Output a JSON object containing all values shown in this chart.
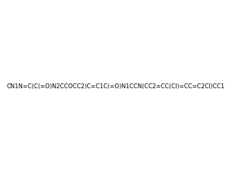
{
  "smiles": "CN1N=C(C(=O)N2CCOCC2)C=C1C(=O)N1CCN(CC2=CC(Cl)=CC=C2Cl)CC1",
  "image_size": 300,
  "background_color": "#e8e8e8",
  "title": "",
  "atom_colors": {
    "N": "#0000ff",
    "O": "#ff0000",
    "Cl": "#00aa00",
    "C": "#000000"
  }
}
